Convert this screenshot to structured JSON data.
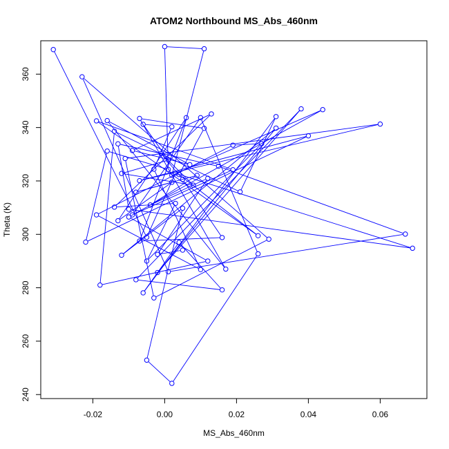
{
  "chart_data": {
    "type": "line",
    "title": "ATOM2 Northbound MS_Abs_460nm",
    "xlabel": "MS_Abs_460nm",
    "ylabel": "Theta (K)",
    "xlim": [
      -0.0345,
      0.073
    ],
    "ylim": [
      238.5,
      372.5
    ],
    "x_ticks": [
      -0.02,
      0.0,
      0.02,
      0.04,
      0.06
    ],
    "x_tick_labels": [
      "-0.02",
      "0.00",
      "0.02",
      "0.04",
      "0.06"
    ],
    "y_ticks": [
      240,
      260,
      280,
      300,
      320,
      340,
      360
    ],
    "y_tick_labels": [
      "240",
      "260",
      "280",
      "300",
      "320",
      "340",
      "360"
    ],
    "grid": false,
    "legend": "none",
    "color": "#0000ff",
    "series": [
      {
        "marker": "open-circle",
        "points": [
          [
            -0.031,
            369.2
          ],
          [
            -0.005,
            298.9
          ],
          [
            0.003,
            322.9
          ],
          [
            0.069,
            294.8
          ],
          [
            -0.01,
            309.4
          ],
          [
            -0.013,
            333.9
          ],
          [
            0.015,
            325.5
          ],
          [
            0.067,
            300.1
          ],
          [
            0.001,
            286.0
          ],
          [
            -0.023,
            359.0
          ],
          [
            0.029,
            298.2
          ],
          [
            -0.003,
            276.2
          ],
          [
            -0.011,
            328.4
          ],
          [
            0.06,
            341.3
          ],
          [
            -0.007,
            320.1
          ],
          [
            0.04,
            336.9
          ],
          [
            -0.022,
            297.1
          ],
          [
            -0.016,
            331.2
          ],
          [
            0.001,
            324.3
          ],
          [
            0.0,
            370.3
          ],
          [
            0.011,
            369.5
          ],
          [
            0.002,
            322.1
          ],
          [
            0.044,
            346.7
          ],
          [
            -0.01,
            306.5
          ],
          [
            0.012,
            290.0
          ],
          [
            -0.018,
            281.0
          ],
          [
            -0.014,
            338.6
          ],
          [
            0.021,
            315.9
          ],
          [
            0.031,
            344.1
          ],
          [
            -0.006,
            278.1
          ],
          [
            0.004,
            297.0
          ],
          [
            0.016,
            279.2
          ],
          [
            -0.008,
            283.0
          ],
          [
            0.038,
            347.0
          ],
          [
            -0.002,
            285.7
          ],
          [
            0.031,
            339.8
          ],
          [
            -0.012,
            292.2
          ],
          [
            0.005,
            309.8
          ],
          [
            -0.005,
            252.9
          ],
          [
            0.002,
            244.2
          ],
          [
            0.026,
            292.7
          ],
          [
            0.01,
            343.7
          ],
          [
            -0.009,
            307.3
          ],
          [
            0.019,
            324.2
          ],
          [
            -0.019,
            342.5
          ],
          [
            0.026,
            299.5
          ],
          [
            0.004,
            322.4
          ],
          [
            0.011,
            339.7
          ],
          [
            -0.007,
            343.4
          ],
          [
            0.017,
            287.0
          ],
          [
            -0.016,
            342.6
          ],
          [
            0.007,
            326.1
          ],
          [
            -0.009,
            331.4
          ],
          [
            0.013,
            345.1
          ],
          [
            -0.014,
            310.2
          ],
          [
            0.003,
            311.6
          ],
          [
            -0.005,
            290.0
          ],
          [
            0.027,
            334.0
          ],
          [
            0.019,
            333.4
          ],
          [
            -0.019,
            307.3
          ],
          [
            0.01,
            286.8
          ],
          [
            -0.003,
            324.4
          ],
          [
            0.002,
            340.3
          ],
          [
            -0.006,
            341.2
          ],
          [
            0.001,
            327.8
          ],
          [
            -0.012,
            322.8
          ],
          [
            0.008,
            318.4
          ],
          [
            -0.001,
            330.3
          ],
          [
            0.005,
            320.6
          ],
          [
            0.016,
            298.8
          ],
          [
            -0.007,
            297.5
          ],
          [
            0.006,
            343.7
          ],
          [
            -0.013,
            305.1
          ],
          [
            0.002,
            319.5
          ],
          [
            -0.008,
            315.8
          ],
          [
            0.009,
            322.1
          ],
          [
            -0.004,
            311.0
          ],
          [
            0.012,
            321.0
          ],
          [
            -0.002,
            292.5
          ],
          [
            0.005,
            294.1
          ]
        ]
      }
    ]
  }
}
